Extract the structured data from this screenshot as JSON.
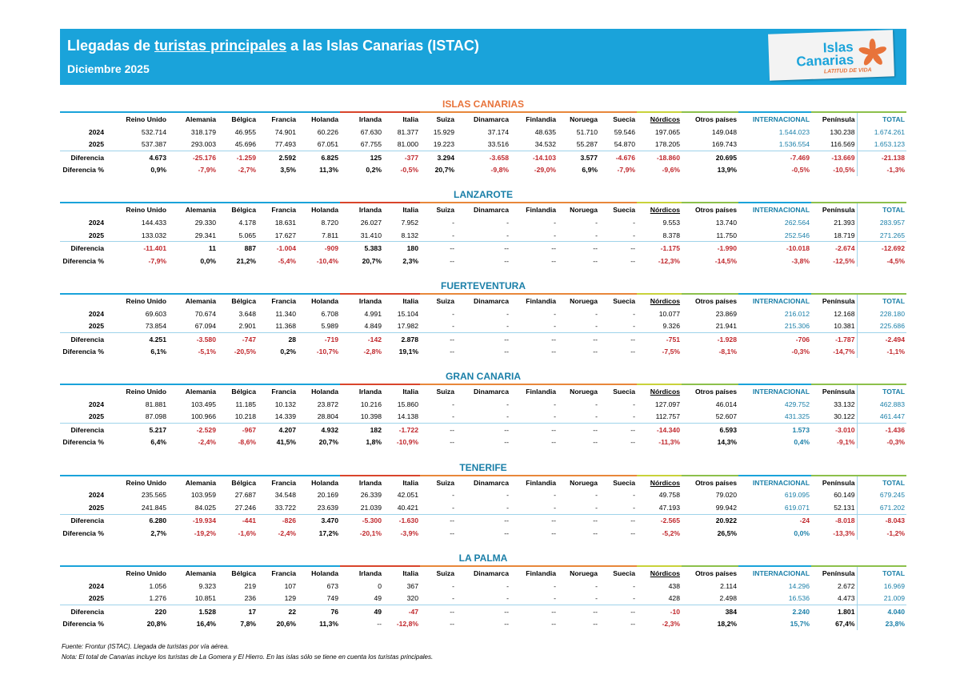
{
  "header": {
    "title_parts": [
      "Llegadas de ",
      "turistas principales",
      " a las Islas Canarias (ISTAC)"
    ],
    "subtitle": "Diciembre 2025",
    "logo": {
      "line1": "Islas",
      "line2": "Canarias",
      "tagline": "LATITUD DE VIDA"
    }
  },
  "columns": [
    "Reino Unido",
    "Alemania",
    "Bélgica",
    "Francia",
    "Holanda",
    "Irlanda",
    "Italia",
    "Suiza",
    "Dinamarca",
    "Finlandia",
    "Noruega",
    "Suecia",
    "Nórdicos",
    "Otros países",
    "INTERNACIONAL",
    "Península",
    "TOTAL"
  ],
  "row_labels": [
    "2024",
    "2025",
    "Diferencia",
    "Diferencia %"
  ],
  "sections": [
    {
      "title": "ISLAS CANARIAS",
      "rows": [
        [
          "532.714",
          "318.179",
          "46.955",
          "74.901",
          "60.226",
          "67.630",
          "81.377",
          "15.929",
          "37.174",
          "48.635",
          "51.710",
          "59.546",
          "197.065",
          "149.048",
          "1.544.023",
          "130.238",
          "1.674.261"
        ],
        [
          "537.387",
          "293.003",
          "45.696",
          "77.493",
          "67.051",
          "67.755",
          "81.000",
          "19.223",
          "33.516",
          "34.532",
          "55.287",
          "54.870",
          "178.205",
          "169.743",
          "1.536.554",
          "116.569",
          "1.653.123"
        ],
        [
          "4.673",
          "-25.176",
          "-1.259",
          "2.592",
          "6.825",
          "125",
          "-377",
          "3.294",
          "-3.658",
          "-14.103",
          "3.577",
          "-4.676",
          "-18.860",
          "20.695",
          "-7.469",
          "-13.669",
          "-21.138"
        ],
        [
          "0,9%",
          "-7,9%",
          "-2,7%",
          "3,5%",
          "11,3%",
          "0,2%",
          "-0,5%",
          "20,7%",
          "-9,8%",
          "-29,0%",
          "6,9%",
          "-7,9%",
          "-9,6%",
          "13,9%",
          "-0,5%",
          "-10,5%",
          "-1,3%"
        ]
      ]
    },
    {
      "title": "LANZAROTE",
      "rows": [
        [
          "144.433",
          "29.330",
          "4.178",
          "18.631",
          "8.720",
          "26.027",
          "7.952",
          "-",
          "-",
          "-",
          "-",
          "-",
          "9.553",
          "13.740",
          "262.564",
          "21.393",
          "283.957"
        ],
        [
          "133.032",
          "29.341",
          "5.065",
          "17.627",
          "7.811",
          "31.410",
          "8.132",
          "-",
          "-",
          "-",
          "-",
          "-",
          "8.378",
          "11.750",
          "252.546",
          "18.719",
          "271.265"
        ],
        [
          "-11.401",
          "11",
          "887",
          "-1.004",
          "-909",
          "5.383",
          "180",
          "--",
          "--",
          "--",
          "--",
          "--",
          "-1.175",
          "-1.990",
          "-10.018",
          "-2.674",
          "-12.692"
        ],
        [
          "-7,9%",
          "0,0%",
          "21,2%",
          "-5,4%",
          "-10,4%",
          "20,7%",
          "2,3%",
          "--",
          "--",
          "--",
          "--",
          "--",
          "-12,3%",
          "-14,5%",
          "-3,8%",
          "-12,5%",
          "-4,5%"
        ]
      ]
    },
    {
      "title": "FUERTEVENTURA",
      "rows": [
        [
          "69.603",
          "70.674",
          "3.648",
          "11.340",
          "6.708",
          "4.991",
          "15.104",
          "-",
          "-",
          "-",
          "-",
          "-",
          "10.077",
          "23.869",
          "216.012",
          "12.168",
          "228.180"
        ],
        [
          "73.854",
          "67.094",
          "2.901",
          "11.368",
          "5.989",
          "4.849",
          "17.982",
          "-",
          "-",
          "-",
          "-",
          "-",
          "9.326",
          "21.941",
          "215.306",
          "10.381",
          "225.686"
        ],
        [
          "4.251",
          "-3.580",
          "-747",
          "28",
          "-719",
          "-142",
          "2.878",
          "--",
          "--",
          "--",
          "--",
          "--",
          "-751",
          "-1.928",
          "-706",
          "-1.787",
          "-2.494"
        ],
        [
          "6,1%",
          "-5,1%",
          "-20,5%",
          "0,2%",
          "-10,7%",
          "-2,8%",
          "19,1%",
          "--",
          "--",
          "--",
          "--",
          "--",
          "-7,5%",
          "-8,1%",
          "-0,3%",
          "-14,7%",
          "-1,1%"
        ]
      ]
    },
    {
      "title": "GRAN CANARIA",
      "rows": [
        [
          "81.881",
          "103.495",
          "11.185",
          "10.132",
          "23.872",
          "10.216",
          "15.860",
          "-",
          "-",
          "-",
          "-",
          "-",
          "127.097",
          "46.014",
          "429.752",
          "33.132",
          "462.883"
        ],
        [
          "87.098",
          "100.966",
          "10.218",
          "14.339",
          "28.804",
          "10.398",
          "14.138",
          "-",
          "-",
          "-",
          "-",
          "-",
          "112.757",
          "52.607",
          "431.325",
          "30.122",
          "461.447"
        ],
        [
          "5.217",
          "-2.529",
          "-967",
          "4.207",
          "4.932",
          "182",
          "-1.722",
          "--",
          "--",
          "--",
          "--",
          "--",
          "-14.340",
          "6.593",
          "1.573",
          "-3.010",
          "-1.436"
        ],
        [
          "6,4%",
          "-2,4%",
          "-8,6%",
          "41,5%",
          "20,7%",
          "1,8%",
          "-10,9%",
          "--",
          "--",
          "--",
          "--",
          "--",
          "-11,3%",
          "14,3%",
          "0,4%",
          "-9,1%",
          "-0,3%"
        ]
      ]
    },
    {
      "title": "TENERIFE",
      "rows": [
        [
          "235.565",
          "103.959",
          "27.687",
          "34.548",
          "20.169",
          "26.339",
          "42.051",
          "-",
          "-",
          "-",
          "-",
          "-",
          "49.758",
          "79.020",
          "619.095",
          "60.149",
          "679.245"
        ],
        [
          "241.845",
          "84.025",
          "27.246",
          "33.722",
          "23.639",
          "21.039",
          "40.421",
          "-",
          "-",
          "-",
          "-",
          "-",
          "47.193",
          "99.942",
          "619.071",
          "52.131",
          "671.202"
        ],
        [
          "6.280",
          "-19.934",
          "-441",
          "-826",
          "3.470",
          "-5.300",
          "-1.630",
          "--",
          "--",
          "--",
          "--",
          "--",
          "-2.565",
          "20.922",
          "-24",
          "-8.018",
          "-8.043"
        ],
        [
          "2,7%",
          "-19,2%",
          "-1,6%",
          "-2,4%",
          "17,2%",
          "-20,1%",
          "-3,9%",
          "--",
          "--",
          "--",
          "--",
          "--",
          "-5,2%",
          "26,5%",
          "0,0%",
          "-13,3%",
          "-1,2%"
        ]
      ]
    },
    {
      "title": "LA PALMA",
      "rows": [
        [
          "1.056",
          "9.323",
          "219",
          "107",
          "673",
          "0",
          "367",
          "-",
          "-",
          "-",
          "-",
          "-",
          "438",
          "2.114",
          "14.296",
          "2.672",
          "16.969"
        ],
        [
          "1.276",
          "10.851",
          "236",
          "129",
          "749",
          "49",
          "320",
          "-",
          "-",
          "-",
          "-",
          "-",
          "428",
          "2.498",
          "16.536",
          "4.473",
          "21.009"
        ],
        [
          "220",
          "1.528",
          "17",
          "22",
          "76",
          "49",
          "-47",
          "--",
          "--",
          "--",
          "--",
          "--",
          "-10",
          "384",
          "2.240",
          "1.801",
          "4.040"
        ],
        [
          "20,8%",
          "16,4%",
          "7,8%",
          "20,6%",
          "11,3%",
          "--",
          "-12,8%",
          "--",
          "--",
          "--",
          "--",
          "--",
          "-2,3%",
          "18,2%",
          "15,7%",
          "67,4%",
          "23,8%"
        ]
      ]
    }
  ],
  "notes": [
    "Fuente: Frontur (ISTAC). Llegada de turistas por vía aérea.",
    "Nota: El total de Canarias incluye los turistas de La Gomera y El Hierro. En las islas sólo se tiene en cuenta los turistas principales."
  ]
}
